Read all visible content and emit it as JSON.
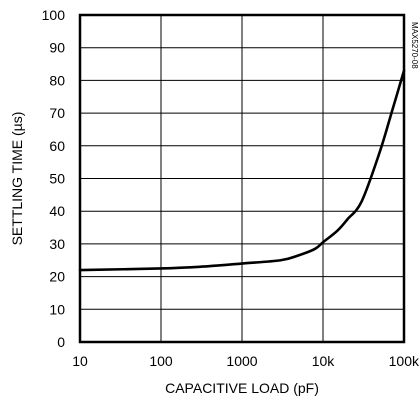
{
  "chart_data": {
    "type": "line",
    "title": "",
    "xlabel": "CAPACITIVE LOAD (pF)",
    "ylabel": "SETTLING TIME (µs)",
    "xscale": "log",
    "xlim": [
      10,
      100000
    ],
    "ylim": [
      0,
      100
    ],
    "grid": true,
    "x_ticks": [
      10,
      100,
      1000,
      10000,
      100000
    ],
    "x_tick_labels": [
      "10",
      "100",
      "1000",
      "10k",
      "100k"
    ],
    "y_ticks": [
      0,
      10,
      20,
      30,
      40,
      50,
      60,
      70,
      80,
      90,
      100
    ],
    "y_tick_labels": [
      "0",
      "10",
      "20",
      "30",
      "40",
      "50",
      "60",
      "70",
      "80",
      "90",
      "100"
    ],
    "series": [
      {
        "x": [
          10,
          100,
          300,
          1000,
          3000,
          5000,
          8000,
          10000,
          15000,
          20000,
          30000,
          50000,
          70000,
          100000
        ],
        "y": [
          22,
          22.5,
          23,
          24,
          25,
          26.5,
          28.5,
          30.5,
          34,
          37.5,
          43,
          58,
          70,
          83
        ]
      }
    ],
    "annotation": "MAX5270-08"
  }
}
